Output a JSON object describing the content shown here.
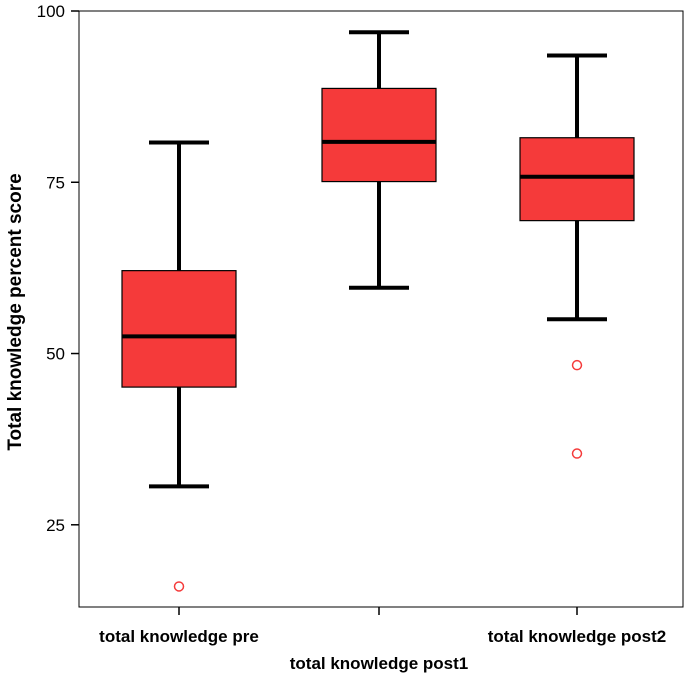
{
  "chart_data": {
    "type": "boxplot",
    "ylabel": "Total knowledge percent score",
    "ylim": [
      13,
      100
    ],
    "yticks": [
      25,
      50,
      75,
      100
    ],
    "box_color": "#f53a3a",
    "outlier_color": "#f53a3a",
    "line_color": "#000000",
    "grid": false,
    "categories": [
      "total knowledge pre",
      "total knowledge post1",
      "total knowledge post2"
    ],
    "boxes": [
      {
        "name": "total knowledge pre",
        "whisker_low": 30.6,
        "q1": 45.1,
        "median": 52.5,
        "q3": 62.1,
        "whisker_high": 80.8,
        "outliers": [
          16.0
        ]
      },
      {
        "name": "total knowledge post1",
        "whisker_low": 59.6,
        "q1": 75.1,
        "median": 80.9,
        "q3": 88.7,
        "whisker_high": 96.9,
        "outliers": []
      },
      {
        "name": "total knowledge post2",
        "whisker_low": 55.0,
        "q1": 69.4,
        "median": 75.8,
        "q3": 81.5,
        "whisker_high": 93.5,
        "outliers": [
          48.3,
          35.4
        ]
      }
    ]
  }
}
